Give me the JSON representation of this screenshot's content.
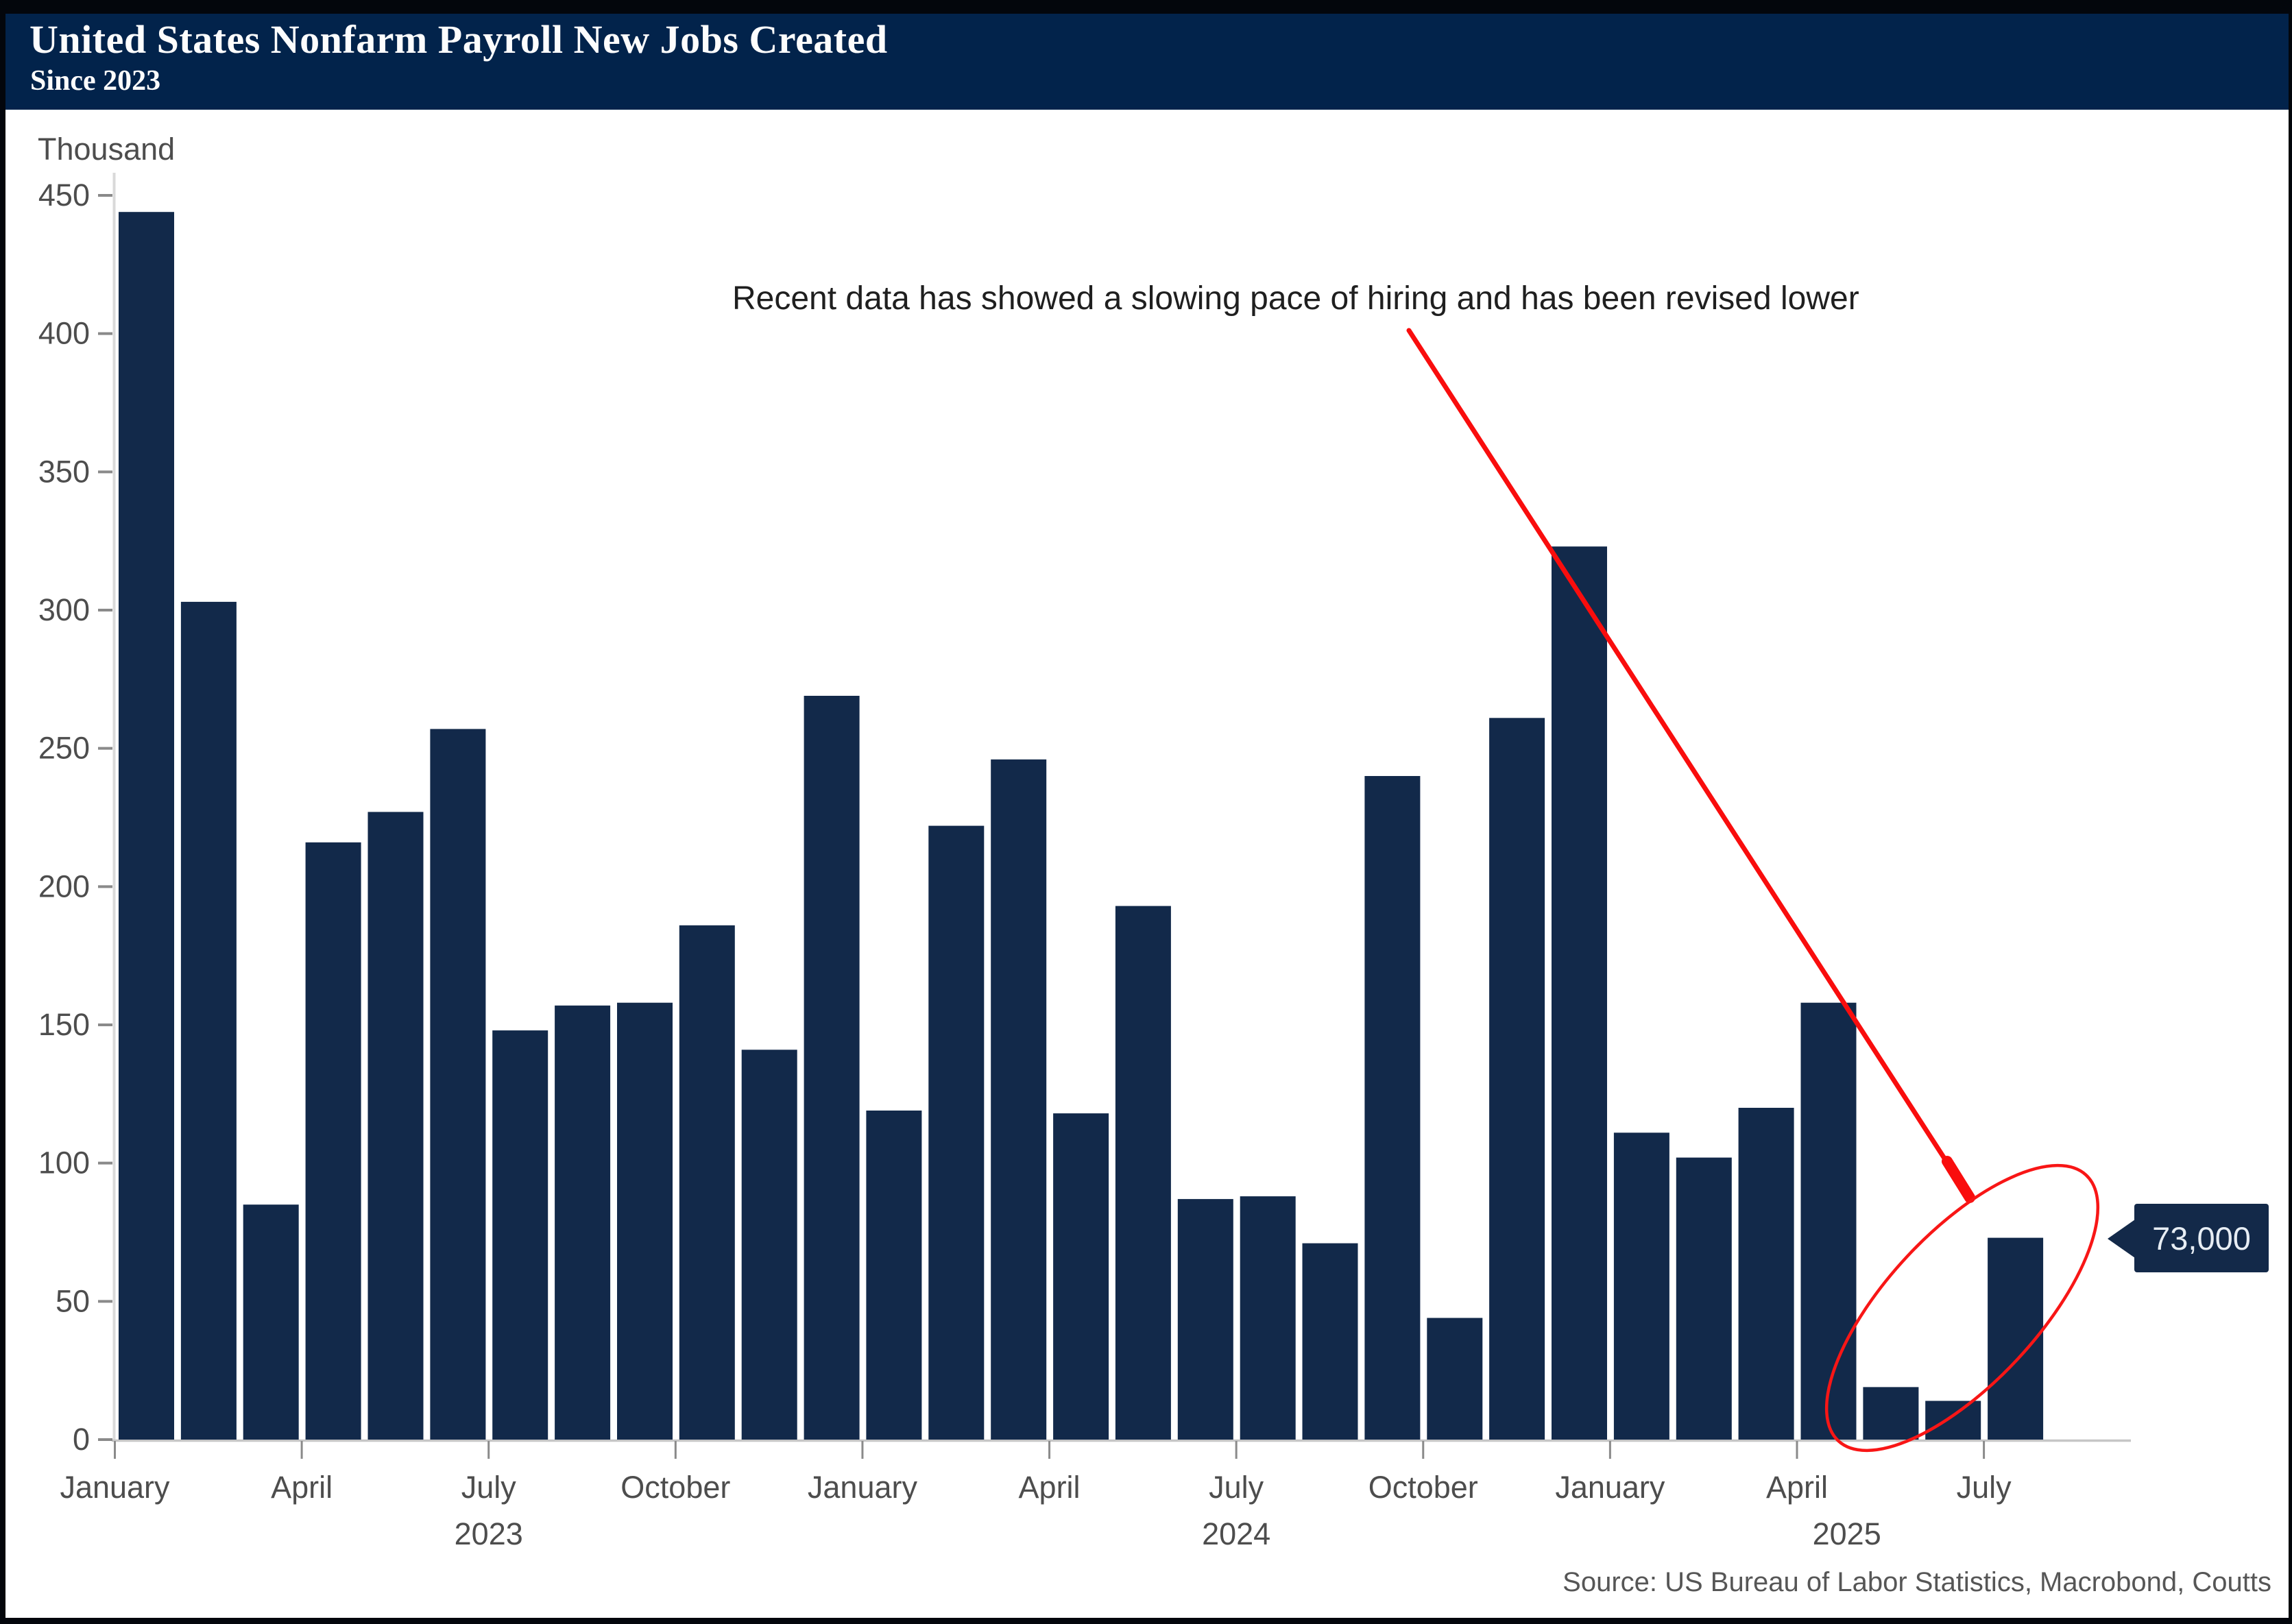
{
  "header": {
    "title": "United States Nonfarm Payroll New Jobs Created",
    "subtitle": "Since 2023"
  },
  "source": "Source: US Bureau of Labor Statistics, Macrobond, Coutts",
  "colors": {
    "bar": "#12294a",
    "header_bg": "#02234b",
    "frame": "#03060c",
    "annotation_red": "#f90d0d",
    "ellipse_red": "#f81616",
    "callout_bg": "#132949",
    "callout_text": "#e7edf4",
    "axis_line": "#d9d9d9",
    "baseline": "#c6c6c6",
    "tick": "#8a8a8a",
    "tick_label": "#4d4d4d"
  },
  "chart_data": {
    "type": "bar",
    "title": "United States Nonfarm Payroll New Jobs Created Since 2023",
    "ylabel": "Thousand",
    "xlabel": "",
    "ylim": [
      0,
      450
    ],
    "ytick_step": 50,
    "yticks": [
      0,
      50,
      100,
      150,
      200,
      250,
      300,
      350,
      400,
      450
    ],
    "grid": "off",
    "legend": "none",
    "categories": [
      "January 2023",
      "February 2023",
      "March 2023",
      "April 2023",
      "May 2023",
      "June 2023",
      "July 2023",
      "August 2023",
      "September 2023",
      "October 2023",
      "November 2023",
      "December 2023",
      "January 2024",
      "February 2024",
      "March 2024",
      "April 2024",
      "May 2024",
      "June 2024",
      "July 2024",
      "August 2024",
      "September 2024",
      "October 2024",
      "November 2024",
      "December 2024",
      "January 2025",
      "February 2025",
      "March 2025",
      "April 2025",
      "May 2025",
      "June 2025",
      "July 2025"
    ],
    "values": [
      444,
      303,
      85,
      216,
      227,
      257,
      148,
      157,
      158,
      186,
      141,
      269,
      119,
      222,
      246,
      118,
      193,
      87,
      88,
      71,
      240,
      44,
      261,
      323,
      111,
      102,
      120,
      158,
      19,
      14,
      73
    ],
    "xtick_labels": [
      {
        "label": "January",
        "month_index": 0
      },
      {
        "label": "April",
        "month_index": 3
      },
      {
        "label": "July",
        "month_index": 6
      },
      {
        "label": "October",
        "month_index": 9
      },
      {
        "label": "January",
        "month_index": 12
      },
      {
        "label": "April",
        "month_index": 15
      },
      {
        "label": "July",
        "month_index": 18
      },
      {
        "label": "October",
        "month_index": 21
      },
      {
        "label": "January",
        "month_index": 24
      },
      {
        "label": "April",
        "month_index": 27
      },
      {
        "label": "July",
        "month_index": 30
      }
    ],
    "year_labels": [
      {
        "label": "2023",
        "anchor_month": 6
      },
      {
        "label": "2024",
        "anchor_month": 18
      },
      {
        "label": "2025",
        "anchor_month": 27.8
      }
    ],
    "annotation": "Recent data has showed a slowing pace of hiring and has been revised lower",
    "callout_value": "73,000",
    "highlighted_months": [
      "May 2025",
      "June 2025",
      "July 2025"
    ]
  }
}
